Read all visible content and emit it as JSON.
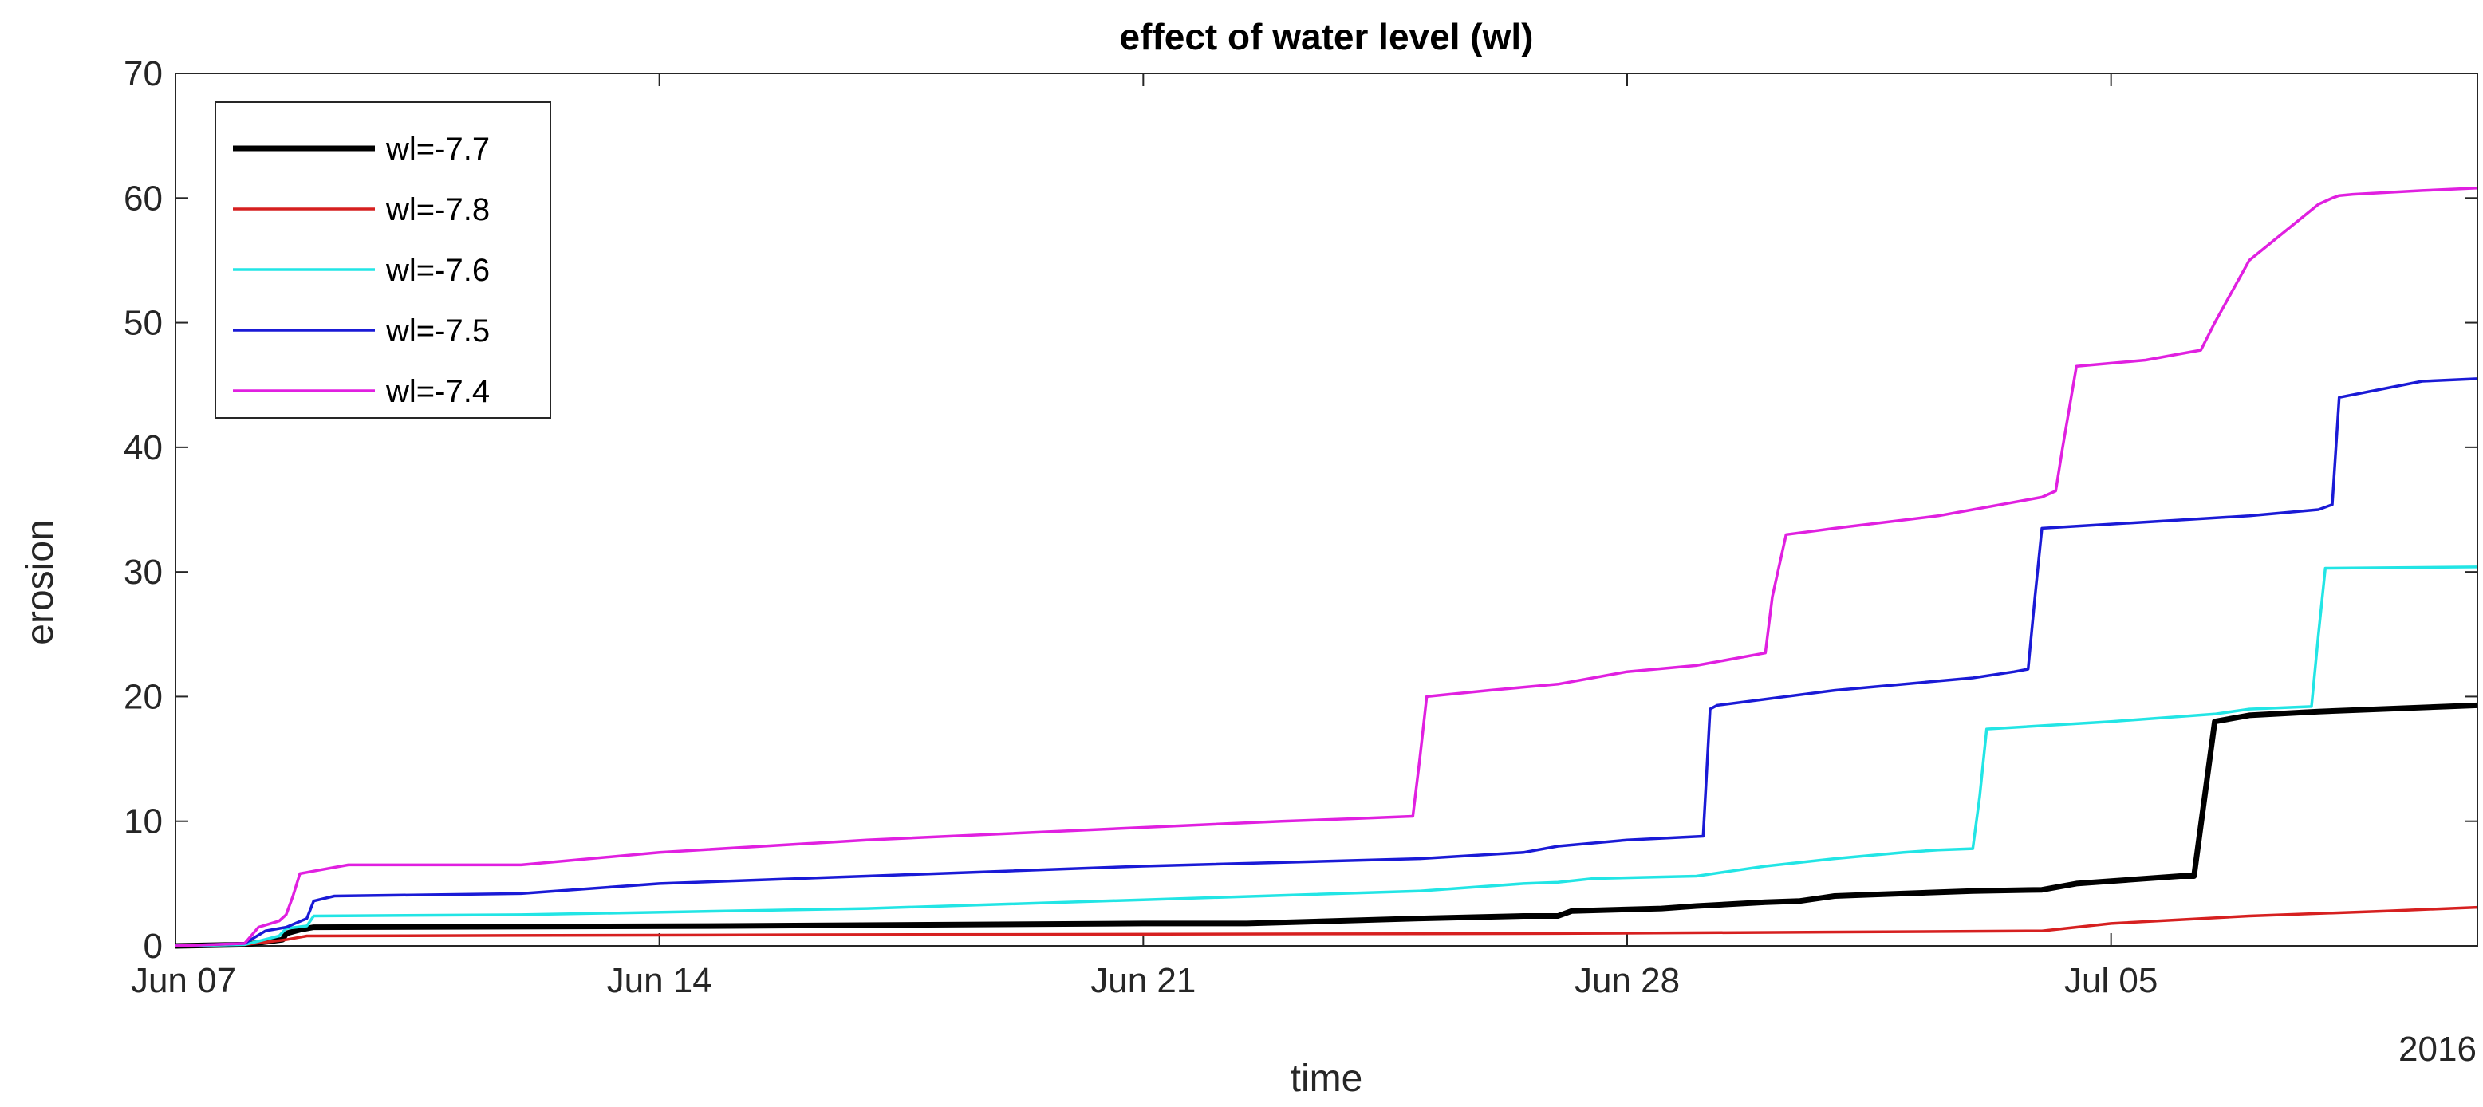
{
  "chart_data": {
    "type": "line",
    "title": "effect of water level (wl)",
    "xlabel": "time",
    "ylabel": "erosion",
    "x_secondary_label": "2016",
    "x_unit": "days since Jun 07 2016",
    "xlim": [
      0,
      33.3
    ],
    "ylim": [
      0,
      70
    ],
    "yticks": [
      0,
      10,
      20,
      30,
      40,
      50,
      60,
      70
    ],
    "xticks": [
      {
        "value": 0,
        "label": "Jun 07"
      },
      {
        "value": 7,
        "label": "Jun 14"
      },
      {
        "value": 14,
        "label": "Jun 21"
      },
      {
        "value": 21,
        "label": "Jun 28"
      },
      {
        "value": 28,
        "label": "Jul 05"
      }
    ],
    "grid": false,
    "legend_position": "top-left",
    "series": [
      {
        "name": "wl=-7.7",
        "color": "#000000",
        "x": [
          0,
          1.0,
          1.55,
          1.6,
          1.8,
          2.0,
          8,
          14,
          15.5,
          18,
          19.5,
          20.0,
          20.2,
          21.5,
          22.0,
          23.0,
          23.5,
          24.0,
          24.5,
          26.0,
          27.0,
          27.5,
          29.0,
          29.2,
          29.5,
          30.0,
          31.0,
          33.3
        ],
        "y": [
          0,
          0.1,
          0.5,
          1.0,
          1.3,
          1.5,
          1.6,
          1.8,
          1.8,
          2.2,
          2.4,
          2.4,
          2.8,
          3.0,
          3.2,
          3.5,
          3.6,
          4.0,
          4.1,
          4.4,
          4.5,
          5.0,
          5.6,
          5.6,
          18.0,
          18.5,
          18.8,
          19.3
        ]
      },
      {
        "name": "wl=-7.8",
        "color": "#d62020",
        "x": [
          0,
          1.0,
          1.6,
          1.9,
          10,
          20,
          27.0,
          28.0,
          30.0,
          32.0,
          33.3
        ],
        "y": [
          0,
          0.1,
          0.5,
          0.8,
          0.9,
          1.0,
          1.2,
          1.8,
          2.4,
          2.8,
          3.1
        ]
      },
      {
        "name": "wl=-7.6",
        "color": "#22e5e5",
        "x": [
          0,
          1.0,
          1.5,
          1.6,
          1.9,
          2.0,
          5.0,
          10.0,
          14.0,
          18.0,
          19.5,
          20.0,
          20.5,
          22.0,
          22.5,
          23.0,
          24.0,
          25.0,
          25.5,
          26.0,
          26.1,
          26.2,
          28.0,
          29.5,
          30.0,
          30.9,
          31.0,
          31.1,
          33.3
        ],
        "y": [
          0,
          0.1,
          0.8,
          1.4,
          1.6,
          2.4,
          2.5,
          3.0,
          3.7,
          4.4,
          5.0,
          5.1,
          5.4,
          5.6,
          6.0,
          6.4,
          7.0,
          7.5,
          7.7,
          7.8,
          12.0,
          17.4,
          18.0,
          18.6,
          19.0,
          19.2,
          25.0,
          30.3,
          30.4
        ]
      },
      {
        "name": "wl=-7.5",
        "color": "#1a1ad6",
        "x": [
          0,
          1.0,
          1.3,
          1.5,
          1.6,
          1.9,
          2.0,
          2.3,
          5.0,
          7.0,
          10.0,
          14.0,
          18.0,
          19.5,
          20.0,
          21.0,
          22.1,
          22.2,
          22.3,
          24.0,
          26.0,
          26.6,
          26.8,
          26.9,
          27.0,
          30.0,
          31.0,
          31.2,
          31.3,
          32.5,
          33.3
        ],
        "y": [
          0,
          0.2,
          1.2,
          1.4,
          1.5,
          2.2,
          3.6,
          4.0,
          4.2,
          5.0,
          5.6,
          6.4,
          7.0,
          7.5,
          8.0,
          8.5,
          8.8,
          19.0,
          19.3,
          20.5,
          21.5,
          22.0,
          22.2,
          28.0,
          33.5,
          34.5,
          35.0,
          35.4,
          44.0,
          45.3,
          45.5
        ]
      },
      {
        "name": "wl=-7.4",
        "color": "#e020e0",
        "x": [
          0,
          1.0,
          1.2,
          1.5,
          1.6,
          1.7,
          1.8,
          2.0,
          2.5,
          5.0,
          7.0,
          10.0,
          14.0,
          16.0,
          17.0,
          17.9,
          18.0,
          18.1,
          19.0,
          20.0,
          21.0,
          22.0,
          23.0,
          23.1,
          23.3,
          24.0,
          25.5,
          26.0,
          26.5,
          27.0,
          27.2,
          27.3,
          27.5,
          28.5,
          29.0,
          29.3,
          29.5,
          30.0,
          31.0,
          31.2,
          31.3,
          31.5,
          32.5,
          33.3
        ],
        "y": [
          0,
          0.2,
          1.5,
          2.0,
          2.5,
          4.0,
          5.8,
          6.0,
          6.5,
          6.5,
          7.5,
          8.5,
          9.5,
          10.0,
          10.2,
          10.4,
          15.0,
          20.0,
          20.5,
          21.0,
          22.0,
          22.5,
          23.5,
          28.0,
          33.0,
          33.5,
          34.5,
          35.0,
          35.5,
          36.0,
          36.5,
          40.0,
          46.5,
          47.0,
          47.5,
          47.8,
          50.0,
          55.0,
          59.5,
          60.0,
          60.2,
          60.3,
          60.6,
          60.8
        ]
      }
    ]
  }
}
